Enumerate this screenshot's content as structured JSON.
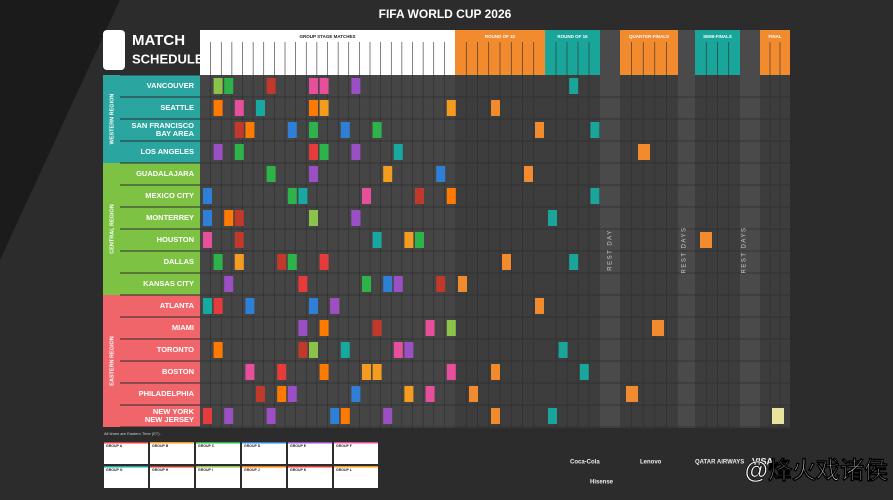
{
  "header": {
    "title": "FIFA WORLD CUP 2026",
    "logo_lines": [
      "MATCH",
      "SCHEDULE"
    ]
  },
  "stages": [
    "GROUP STAGE MATCHES",
    "ROUND OF 32",
    "ROUND OF 16",
    "QUARTER-FINALS",
    "SEMI-FINALS",
    "FINAL"
  ],
  "regions": [
    {
      "name": "WESTERN REGION",
      "cities": [
        [
          "VANCOUVER"
        ],
        [
          "SEATTLE"
        ],
        [
          "SAN FRANCISCO",
          "BAY AREA"
        ],
        [
          "LOS ANGELES"
        ]
      ]
    },
    {
      "name": "CENTRAL REGION",
      "cities": [
        [
          "GUADALAJARA"
        ],
        [
          "MEXICO CITY"
        ],
        [
          "MONTERREY"
        ],
        [
          "HOUSTON"
        ],
        [
          "DALLAS"
        ],
        [
          "KANSAS CITY"
        ]
      ]
    },
    {
      "name": "EASTERN REGION",
      "cities": [
        [
          "ATLANTA"
        ],
        [
          "MIAMI"
        ],
        [
          "TORONTO"
        ],
        [
          "BOSTON"
        ],
        [
          "PHILADELPHIA"
        ],
        [
          "NEW YORK",
          "NEW JERSEY"
        ]
      ]
    }
  ],
  "rest_days": [
    "REST DAY",
    "REST DAYS",
    "REST DAYS"
  ],
  "footnote": "All times are Eastern Time (ET).",
  "groups": [
    "GROUP A",
    "GROUP B",
    "GROUP C",
    "GROUP D",
    "GROUP E",
    "GROUP F",
    "GROUP G",
    "GROUP H",
    "GROUP I",
    "GROUP J",
    "GROUP K",
    "GROUP L"
  ],
  "sponsors": [
    "Coca-Cola",
    "Lenovo",
    "QATAR AIRWAYS",
    "VISA",
    "Hisense"
  ],
  "watermark": "@烽火戏诸侯"
}
